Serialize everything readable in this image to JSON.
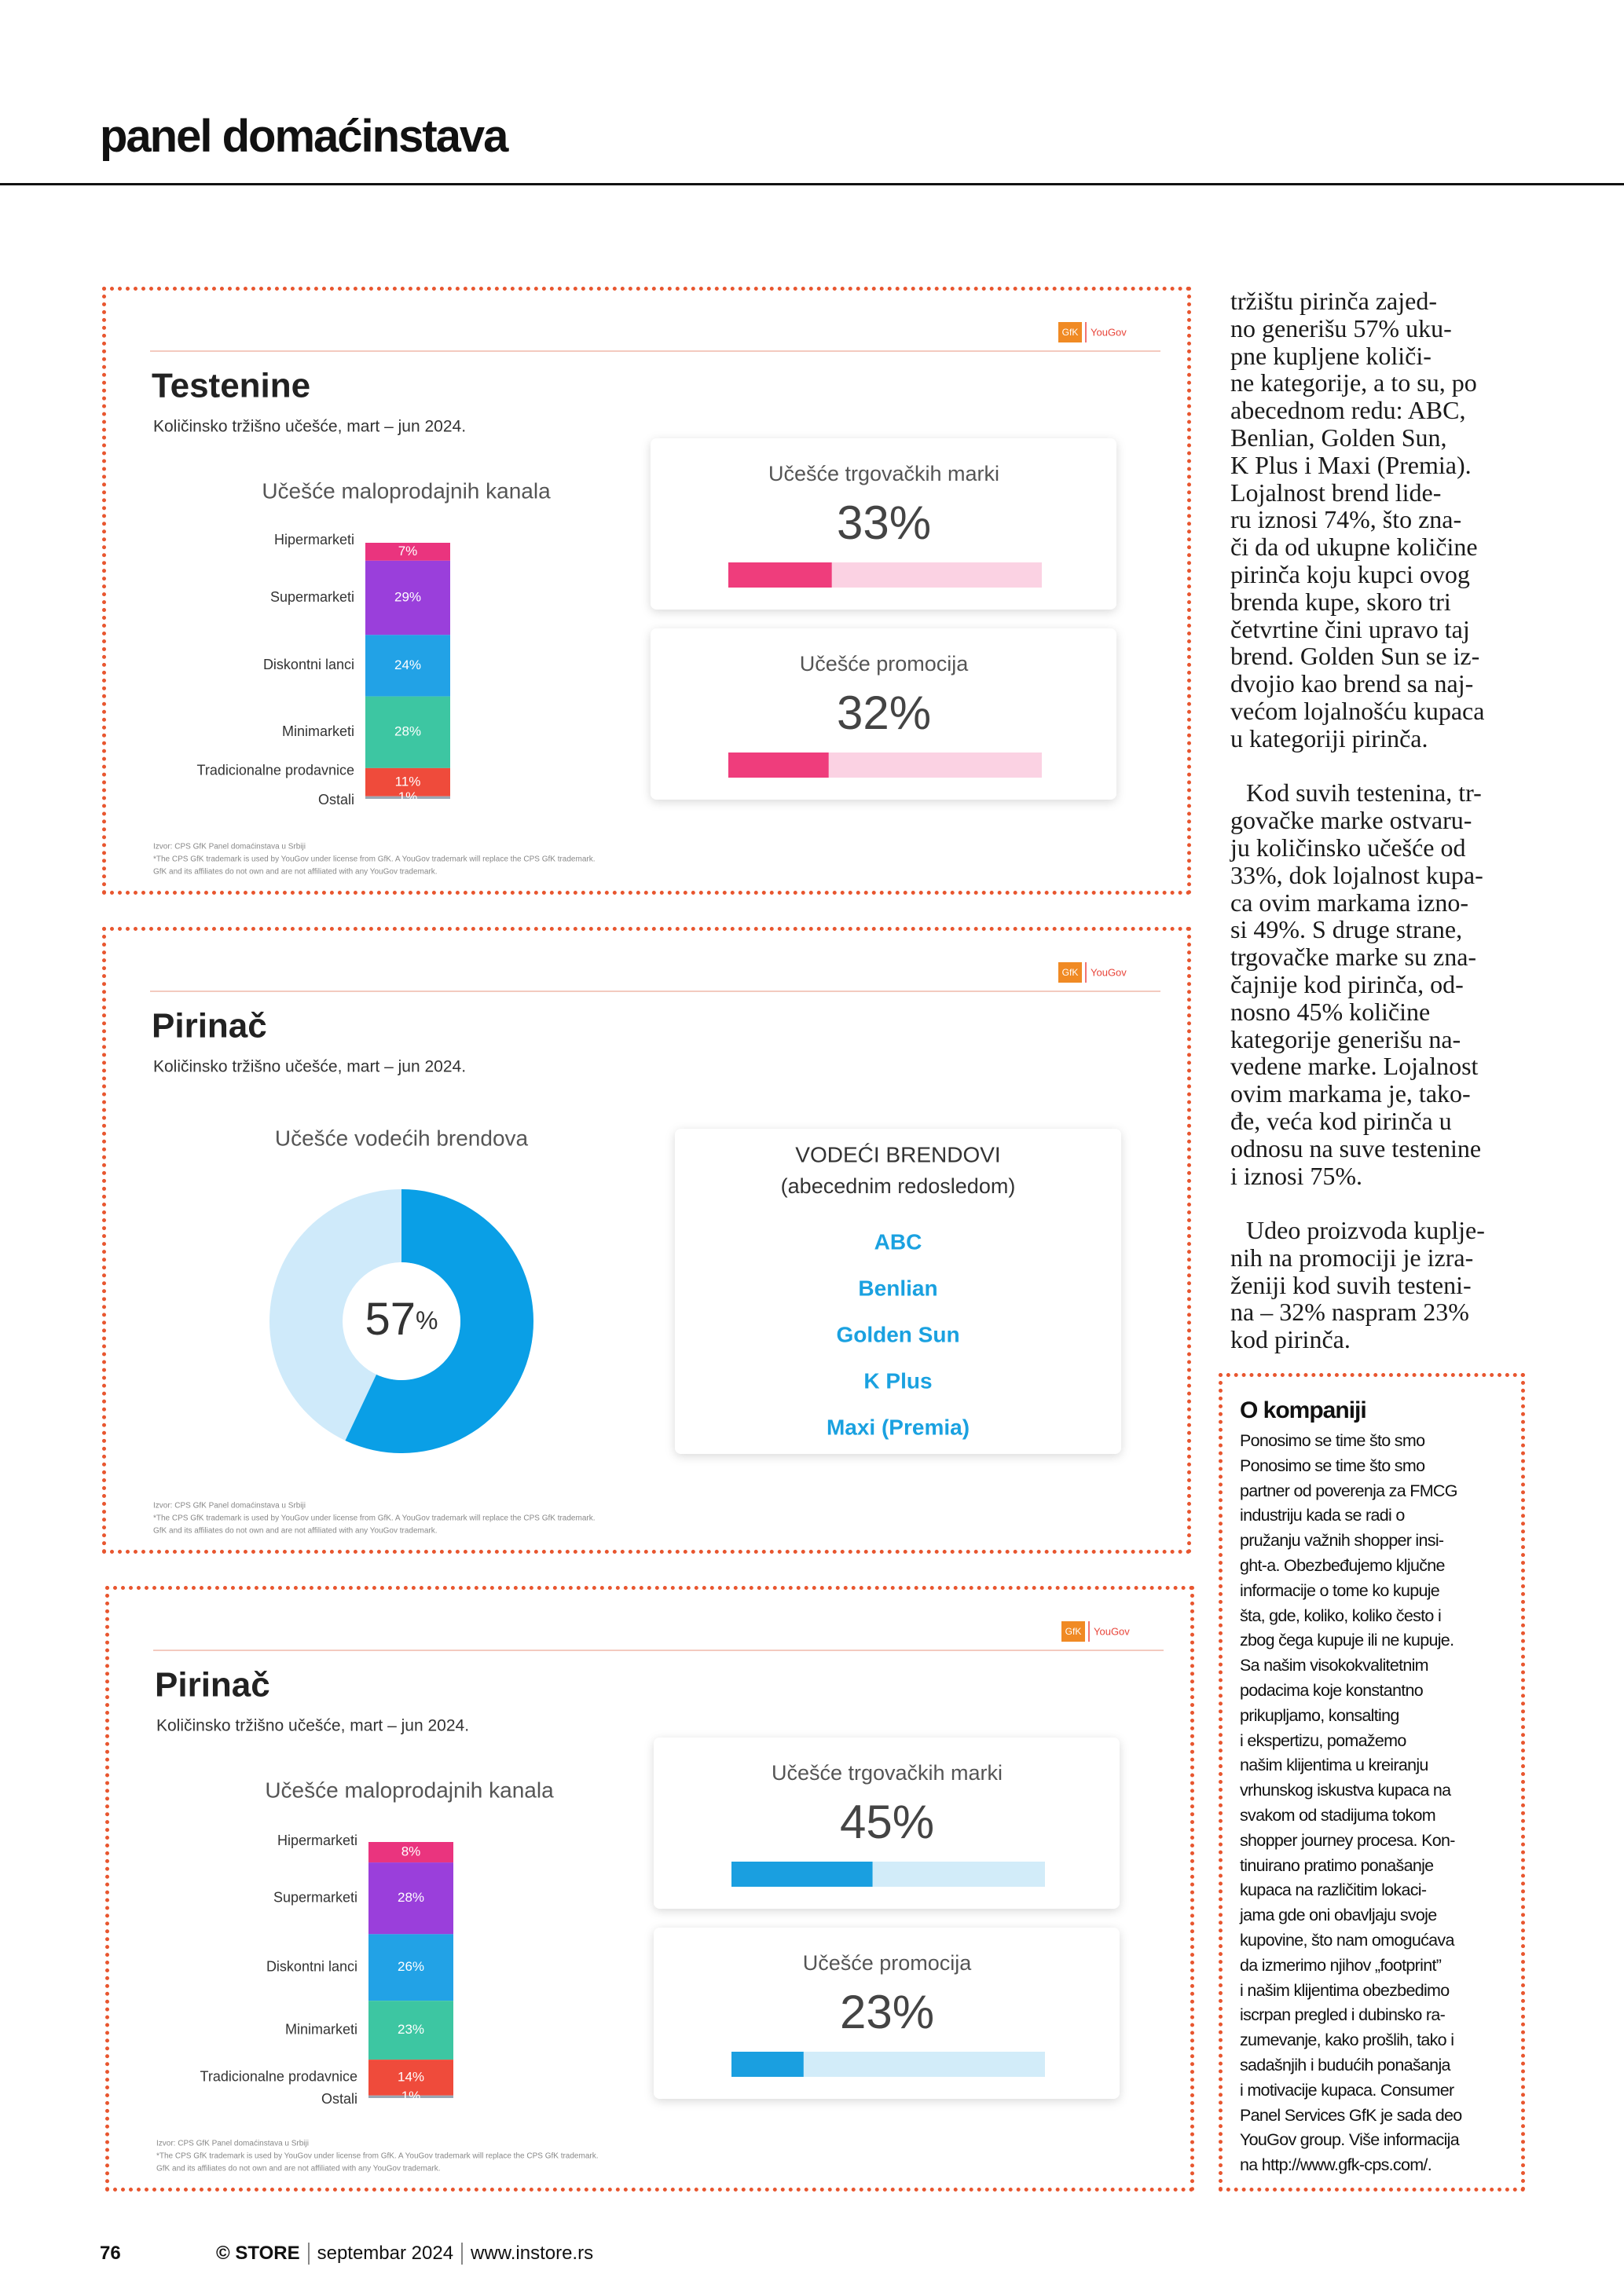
{
  "header": {
    "title": "panel domaćinstava"
  },
  "panels": [
    {
      "type": "channels",
      "logo": {
        "brand": "GfK",
        "partner": "YouGov"
      },
      "title": "Testenine",
      "subtitle": "Količinsko tržišno učešće, mart – jun 2024.",
      "chart": {
        "title": "Učešće maloprodajnih kanala",
        "categories": [
          "Hipermarketi",
          "Supermarketi",
          "Diskontni lanci",
          "Minimarketi",
          "Tradicionalne prodavnice",
          "Ostali"
        ],
        "values": [
          7,
          29,
          24,
          28,
          11,
          1
        ],
        "value_labels": [
          "7%",
          "29%",
          "24%",
          "28%",
          "11%",
          "1%"
        ],
        "colors": [
          "#ea347e",
          "#9a3fdb",
          "#22a2e6",
          "#3dc6a2",
          "#ef4b3b",
          "#9aa6b3"
        ]
      },
      "cards": [
        {
          "title": "Učešće trgovačkih marki",
          "value": 33,
          "value_label": "33%",
          "lim": [
            0,
            100
          ],
          "color": "#ef3d7c",
          "track": "#fbd2e3"
        },
        {
          "title": "Učešće promocija",
          "value": 32,
          "value_label": "32%",
          "lim": [
            0,
            100
          ],
          "color": "#ef3d7c",
          "track": "#fbd2e3"
        }
      ],
      "notes": [
        "Izvor: CPS GfK Panel domaćinstava u Srbiji",
        "*The CPS GfK trademark is used by YouGov under license from GfK. A YouGov trademark will replace the CPS GfK trademark.",
        "GfK and its affiliates do not own and are not affiliated with any YouGov trademark."
      ]
    },
    {
      "type": "brands",
      "logo": {
        "brand": "GfK",
        "partner": "YouGov"
      },
      "title": "Pirinač",
      "subtitle": "Količinsko tržišno učešće, mart – jun 2024.",
      "chart": {
        "title": "Učešće vodećih brendova",
        "value": 57,
        "unit": "%",
        "lim": [
          0,
          100
        ],
        "color": "#0a9fe6",
        "track": "#cfeafa"
      },
      "card": {
        "title": "VODEĆI BRENDOVI",
        "subtitle": "(abecednim redosledom)",
        "brands": [
          "ABC",
          "Benlian",
          "Golden Sun",
          "K Plus",
          "Maxi (Premia)"
        ]
      },
      "notes": [
        "Izvor: CPS GfK Panel domaćinstava u Srbiji",
        "*The CPS GfK trademark is used by YouGov under license from GfK. A YouGov trademark will replace the CPS GfK trademark.",
        "GfK and its affiliates do not own and are not affiliated with any YouGov trademark."
      ]
    },
    {
      "type": "channels",
      "logo": {
        "brand": "GfK",
        "partner": "YouGov"
      },
      "title": "Pirinač",
      "subtitle": "Količinsko tržišno učešće, mart – jun 2024.",
      "chart": {
        "title": "Učešće maloprodajnih kanala",
        "categories": [
          "Hipermarketi",
          "Supermarketi",
          "Diskontni lanci",
          "Minimarketi",
          "Tradicionalne prodavnice",
          "Ostali"
        ],
        "values": [
          8,
          28,
          26,
          23,
          14,
          1
        ],
        "value_labels": [
          "8%",
          "28%",
          "26%",
          "23%",
          "14%",
          "1%"
        ],
        "colors": [
          "#ea347e",
          "#9a3fdb",
          "#22a2e6",
          "#3dc6a2",
          "#ef4b3b",
          "#9aa6b3"
        ]
      },
      "cards": [
        {
          "title": "Učešće trgovačkih marki",
          "value": 45,
          "value_label": "45%",
          "lim": [
            0,
            100
          ],
          "color": "#1a9fe0",
          "track": "#d2ecf9"
        },
        {
          "title": "Učešće promocija",
          "value": 23,
          "value_label": "23%",
          "lim": [
            0,
            100
          ],
          "color": "#1a9fe0",
          "track": "#d2ecf9"
        }
      ],
      "notes": [
        "Izvor: CPS GfK Panel domaćinstava u Srbiji",
        "*The CPS GfK trademark is used by YouGov under license from GfK. A YouGov trademark will replace the CPS GfK trademark.",
        "GfK and its affiliates do not own and are not affiliated with any YouGov trademark."
      ]
    }
  ],
  "column": {
    "paragraphs": [
      [
        "tržištu pirinča zajed-",
        "no generišu 57% uku-",
        "pne kupljene količi-",
        "ne kategorije, a to su, po",
        "abecednom redu: ABC,",
        "Benlian, Golden Sun,",
        "K Plus i Maxi (Premia).",
        "Lojalnost brend lide-",
        "ru iznosi 74%, što zna-",
        "či da od ukupne količine",
        "pirinča koju kupci ovog",
        "brenda kupe, skoro tri",
        "četvrtine čini upravo taj",
        "brend. Golden Sun se iz-",
        "dvojio kao brend sa naj-",
        "većom lojalnošću kupaca",
        "u kategoriji pirinča."
      ],
      [
        "Kod suvih testenina, tr-",
        "govačke marke ostvaru-",
        "ju količinsko učešće od",
        "33%, dok lojalnost kupa-",
        "ca ovim markama izno-",
        "si 49%. S druge strane,",
        "trgovačke marke su zna-",
        "čajnije kod pirinča, od-",
        "nosno 45% količine",
        "kategorije generišu na-",
        "vedene marke. Lojalnost",
        "ovim markama je, tako-",
        "đe, veća kod pirinča u",
        "odnosu na suve testenine",
        "i iznosi 75%."
      ],
      [
        "Udeo proizvoda kuplje-",
        "nih na promociji je izra-",
        "ženiji kod suvih testeni-",
        "na – 32% naspram 23%",
        "kod pirinča."
      ]
    ]
  },
  "sidebar": {
    "title": "O kompaniji",
    "lines": [
      "Ponosimo se time što smo",
      "Ponosimo se time što smo",
      "partner od poverenja za FMCG",
      "industriju kada se radi o",
      "pružanju važnih shopper insi-",
      "ght-a. Obezbeđujemo ključne",
      "informacije o tome ko kupuje",
      "šta, gde, koliko, koliko često i",
      "zbog čega kupuje ili ne kupuje.",
      "Sa našim visokokvalitetnim",
      "podacima koje konstantno",
      "prikupljamo, konsalting",
      "i ekspertizu, pomažemo",
      "našim klijentima u kreiranju",
      "vrhunskog iskustva kupaca na",
      "svakom od stadijuma tokom",
      "shopper journey procesa. Kon-",
      "tinuirano pratimo ponašanje",
      "kupaca na različitim lokaci-",
      "jama gde oni obavljaju svoje",
      "kupovine, što nam omogućava",
      "da izmerimo njihov „footprint”",
      "i našim klijentima obezbedimo",
      "iscrpan pregled i dubinsko ra-",
      "zumevanje, kako prošlih, tako i",
      "sadašnjih i budućih ponašanja",
      "i motivacije kupaca. Consumer",
      "Panel Services GfK je sada deo",
      "YouGov group. Više informacija",
      "na http://www.gfk-cps.com/."
    ]
  },
  "footer": {
    "page": "76",
    "magazine": "© STORE",
    "issue": "septembar 2024",
    "site": "www.instore.rs"
  }
}
